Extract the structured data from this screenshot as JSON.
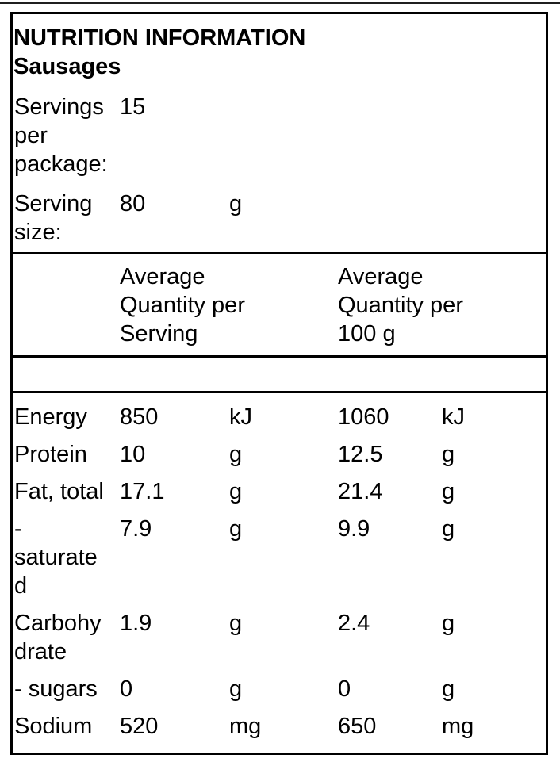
{
  "panel": {
    "title": "NUTRITION INFORMATION",
    "subtitle": "Sausages",
    "servings_per_package": {
      "label": "Servings per package:",
      "label_display": "Servings\nper\npackage:",
      "value": "15"
    },
    "serving_size": {
      "label": "Serving size:",
      "label_display": "Serving\nsize:",
      "value": "80",
      "unit": "g"
    },
    "column_headers": {
      "per_serving": "Average Quantity per Serving",
      "per_serving_display": "Average\nQuantity per\nServing",
      "per_100g": "Average Quantity per 100 g",
      "per_100g_display": "Average\nQuantity per\n100 g"
    },
    "nutrients": [
      {
        "label": "Energy",
        "label_display": "Energy",
        "per_serving": "850",
        "per_serving_unit": "kJ",
        "per_100g": "1060",
        "per_100g_unit": "kJ"
      },
      {
        "label": "Protein",
        "label_display": "Protein",
        "per_serving": "10",
        "per_serving_unit": "g",
        "per_100g": "12.5",
        "per_100g_unit": "g"
      },
      {
        "label": "Fat, total",
        "label_display": "Fat, total",
        "per_serving": "17.1",
        "per_serving_unit": "g",
        "per_100g": "21.4",
        "per_100g_unit": "g"
      },
      {
        "label": "- saturated",
        "label_display": "-\nsaturate\nd",
        "per_serving": "7.9",
        "per_serving_unit": "g",
        "per_100g": "9.9",
        "per_100g_unit": "g"
      },
      {
        "label": "Carbohydrate",
        "label_display": "Carbohy\ndrate",
        "per_serving": "1.9",
        "per_serving_unit": "g",
        "per_100g": "2.4",
        "per_100g_unit": "g"
      },
      {
        "label": "- sugars",
        "label_display": "- sugars",
        "per_serving": "0",
        "per_serving_unit": "g",
        "per_100g": "0",
        "per_100g_unit": "g"
      },
      {
        "label": "Sodium",
        "label_display": "Sodium",
        "per_serving": "520",
        "per_serving_unit": "mg",
        "per_100g": "650",
        "per_100g_unit": "mg"
      }
    ],
    "colors": {
      "background": "#ffffff",
      "text": "#000000",
      "border": "#000000",
      "top_rule": "#1f1f1f"
    }
  }
}
